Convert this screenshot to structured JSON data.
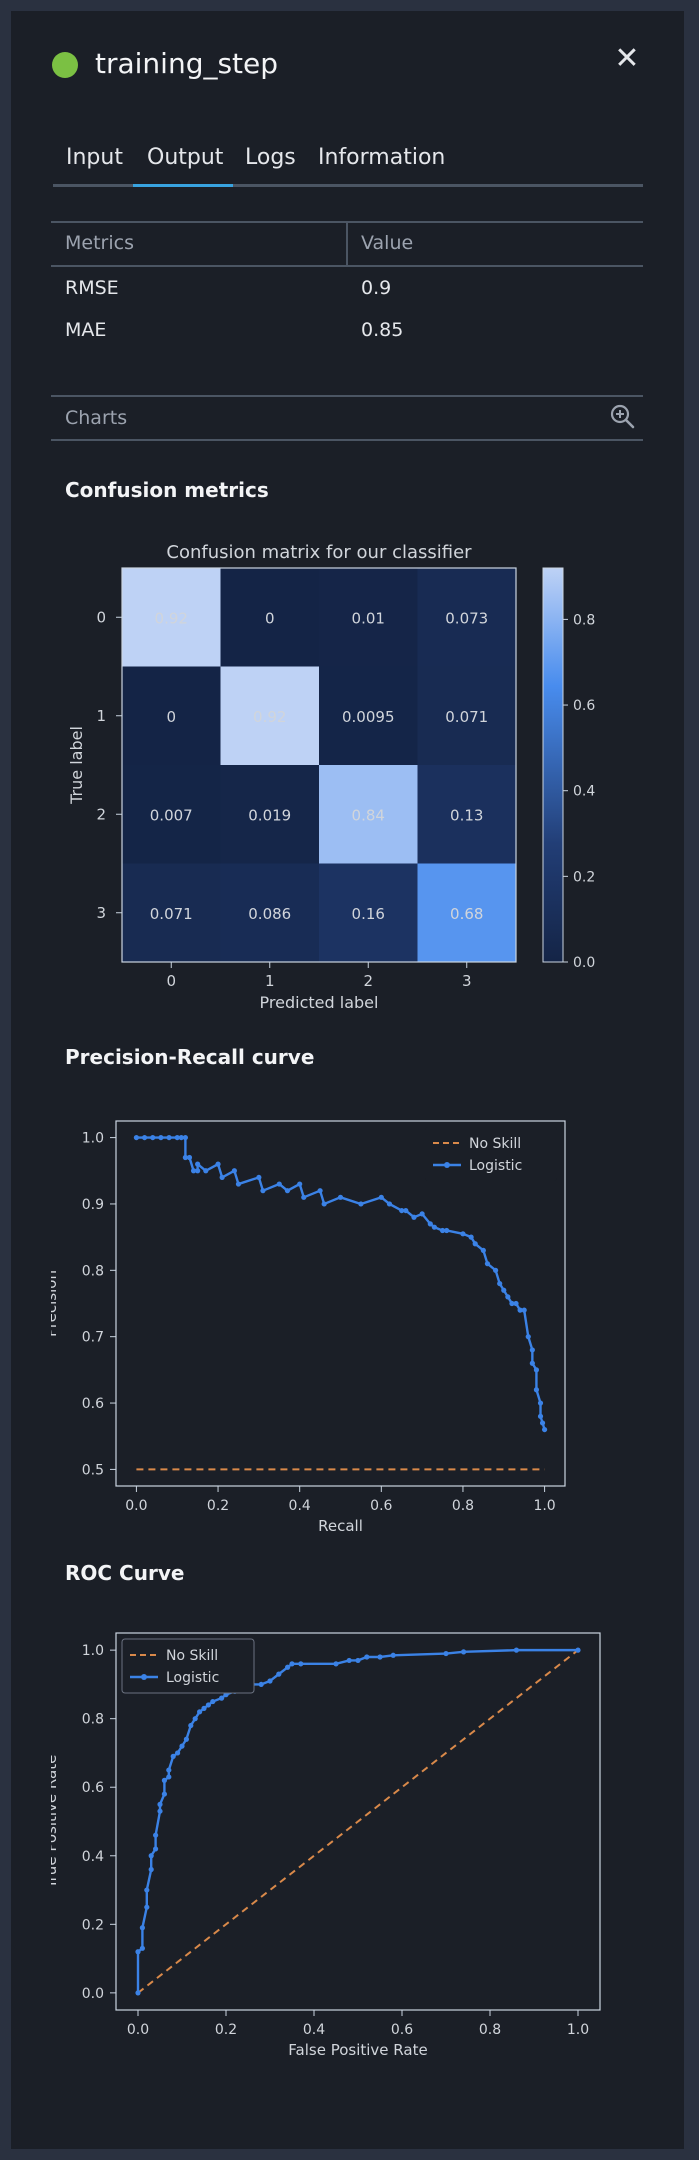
{
  "header": {
    "title": "training_step",
    "status": "success",
    "close_icon": "close-icon"
  },
  "tabs": [
    {
      "label": "Input",
      "active": false
    },
    {
      "label": "Output",
      "active": true
    },
    {
      "label": "Logs",
      "active": false
    },
    {
      "label": "Information",
      "active": false
    }
  ],
  "metrics": {
    "col_metric": "Metrics",
    "col_value": "Value",
    "rows": [
      {
        "name": "RMSE",
        "value": "0.9"
      },
      {
        "name": "MAE",
        "value": "0.85"
      }
    ]
  },
  "charts": {
    "label": "Charts",
    "zoom_icon": "zoom-in-icon"
  },
  "sections": {
    "confusion": "Confusion metrics",
    "pr": "Precision-Recall curve",
    "roc": "ROC Curve"
  },
  "colors": {
    "accent": "#38a3e0",
    "status": "#7bc043",
    "series_logistic": "#3b82e6",
    "series_noskill": "#d9894a"
  },
  "chart_data": [
    {
      "type": "heatmap",
      "title": "Confusion matrix for our classifier",
      "xlabel": "Predicted label",
      "ylabel": "True label",
      "x_ticks": [
        "0",
        "1",
        "2",
        "3"
      ],
      "y_ticks": [
        "0",
        "1",
        "2",
        "3"
      ],
      "values": [
        [
          0.92,
          0,
          0.01,
          0.073
        ],
        [
          0,
          0.92,
          0.0095,
          0.071
        ],
        [
          0.007,
          0.019,
          0.84,
          0.13
        ],
        [
          0.071,
          0.086,
          0.16,
          0.68
        ]
      ],
      "labels": [
        [
          "0.92",
          "0",
          "0.01",
          "0.073"
        ],
        [
          "0",
          "0.92",
          "0.0095",
          "0.071"
        ],
        [
          "0.007",
          "0.019",
          "0.84",
          "0.13"
        ],
        [
          "0.071",
          "0.086",
          "0.16",
          "0.68"
        ]
      ],
      "colorbar_ticks": [
        "0.0",
        "0.2",
        "0.4",
        "0.6",
        "0.8"
      ],
      "colorbar_range": [
        0,
        0.92
      ]
    },
    {
      "type": "line",
      "xlabel": "Recall",
      "ylabel": "Precision",
      "xlim": [
        -0.05,
        1.05
      ],
      "ylim": [
        0.475,
        1.025
      ],
      "x_ticks": [
        "0.0",
        "0.2",
        "0.4",
        "0.6",
        "0.8",
        "1.0"
      ],
      "y_ticks": [
        "0.5",
        "0.6",
        "0.7",
        "0.8",
        "0.9",
        "1.0"
      ],
      "legend": "top-right",
      "series": [
        {
          "name": "No Skill",
          "style": "dashed",
          "x": [
            0,
            1
          ],
          "y": [
            0.5,
            0.5
          ]
        },
        {
          "name": "Logistic",
          "style": "solid-markers",
          "x": [
            0,
            0.02,
            0.04,
            0.06,
            0.08,
            0.1,
            0.11,
            0.12,
            0.12,
            0.13,
            0.14,
            0.15,
            0.15,
            0.17,
            0.2,
            0.21,
            0.24,
            0.25,
            0.3,
            0.31,
            0.35,
            0.37,
            0.4,
            0.41,
            0.45,
            0.46,
            0.5,
            0.55,
            0.6,
            0.62,
            0.65,
            0.66,
            0.68,
            0.7,
            0.72,
            0.73,
            0.75,
            0.76,
            0.8,
            0.82,
            0.83,
            0.85,
            0.86,
            0.88,
            0.89,
            0.9,
            0.91,
            0.92,
            0.93,
            0.94,
            0.95,
            0.96,
            0.97,
            0.97,
            0.98,
            0.98,
            0.99,
            0.99,
            0.995,
            1.0
          ],
          "y": [
            1.0,
            1.0,
            1.0,
            1.0,
            1.0,
            1.0,
            1.0,
            1.0,
            0.97,
            0.97,
            0.95,
            0.95,
            0.96,
            0.95,
            0.96,
            0.94,
            0.95,
            0.93,
            0.94,
            0.92,
            0.93,
            0.92,
            0.93,
            0.91,
            0.92,
            0.9,
            0.91,
            0.9,
            0.91,
            0.9,
            0.89,
            0.89,
            0.88,
            0.885,
            0.87,
            0.865,
            0.86,
            0.86,
            0.855,
            0.85,
            0.84,
            0.83,
            0.81,
            0.8,
            0.78,
            0.77,
            0.76,
            0.75,
            0.75,
            0.74,
            0.74,
            0.7,
            0.68,
            0.66,
            0.65,
            0.62,
            0.6,
            0.58,
            0.57,
            0.56
          ]
        }
      ]
    },
    {
      "type": "line",
      "xlabel": "False Positive Rate",
      "ylabel": "True Positive Rate",
      "xlim": [
        -0.05,
        1.05
      ],
      "ylim": [
        -0.05,
        1.05
      ],
      "x_ticks": [
        "0.0",
        "0.2",
        "0.4",
        "0.6",
        "0.8",
        "1.0"
      ],
      "y_ticks": [
        "0.0",
        "0.2",
        "0.4",
        "0.6",
        "0.8",
        "1.0"
      ],
      "legend": "top-left",
      "series": [
        {
          "name": "No Skill",
          "style": "dashed",
          "x": [
            0,
            1
          ],
          "y": [
            0,
            1
          ]
        },
        {
          "name": "Logistic",
          "style": "solid-markers",
          "x": [
            0,
            0.0,
            0.01,
            0.01,
            0.02,
            0.02,
            0.03,
            0.03,
            0.04,
            0.04,
            0.05,
            0.05,
            0.06,
            0.06,
            0.07,
            0.07,
            0.08,
            0.09,
            0.1,
            0.11,
            0.12,
            0.13,
            0.14,
            0.15,
            0.16,
            0.17,
            0.19,
            0.2,
            0.22,
            0.24,
            0.26,
            0.28,
            0.3,
            0.32,
            0.34,
            0.35,
            0.37,
            0.45,
            0.48,
            0.5,
            0.52,
            0.55,
            0.58,
            0.7,
            0.74,
            0.86,
            1.0
          ],
          "y": [
            0,
            0.12,
            0.13,
            0.19,
            0.25,
            0.3,
            0.36,
            0.4,
            0.42,
            0.46,
            0.53,
            0.55,
            0.58,
            0.62,
            0.63,
            0.65,
            0.69,
            0.7,
            0.72,
            0.74,
            0.78,
            0.8,
            0.82,
            0.83,
            0.84,
            0.85,
            0.86,
            0.87,
            0.88,
            0.89,
            0.9,
            0.9,
            0.91,
            0.93,
            0.95,
            0.96,
            0.96,
            0.96,
            0.97,
            0.97,
            0.98,
            0.98,
            0.985,
            0.99,
            0.995,
            1.0,
            1.0
          ]
        }
      ]
    }
  ]
}
